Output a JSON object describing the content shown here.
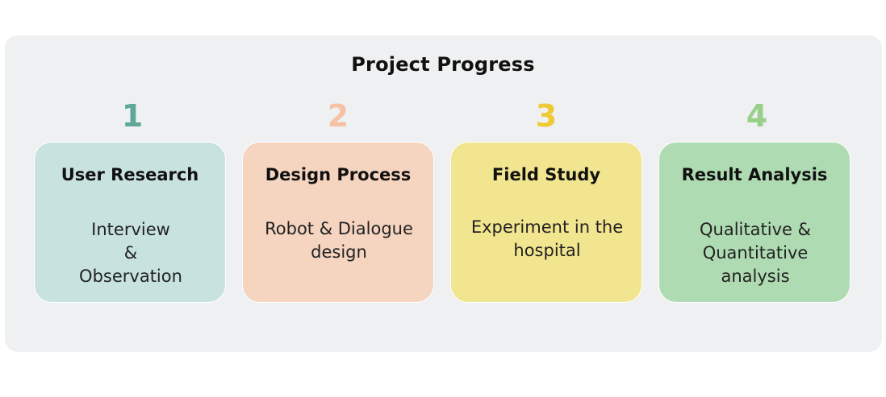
{
  "title": "Project Progress",
  "steps": [
    {
      "number": "1",
      "title": "User Research",
      "description": "Interview\n&\nObservation",
      "number_color": "#5ea89a",
      "card_color": "#c8e2e0"
    },
    {
      "number": "2",
      "title": "Design Process",
      "description": "Robot & Dialogue\ndesign",
      "number_color": "#f5c2a6",
      "card_color": "#f5d4c0"
    },
    {
      "number": "3",
      "title": "Field Study",
      "description": "Experiment in the\nhospital",
      "number_color": "#eecb34",
      "card_color": "#f2e58f"
    },
    {
      "number": "4",
      "title": "Result Analysis",
      "description": "Qualitative &\nQuantitative\nanalysis",
      "number_color": "#98cf8b",
      "card_color": "#afdbb2"
    }
  ]
}
